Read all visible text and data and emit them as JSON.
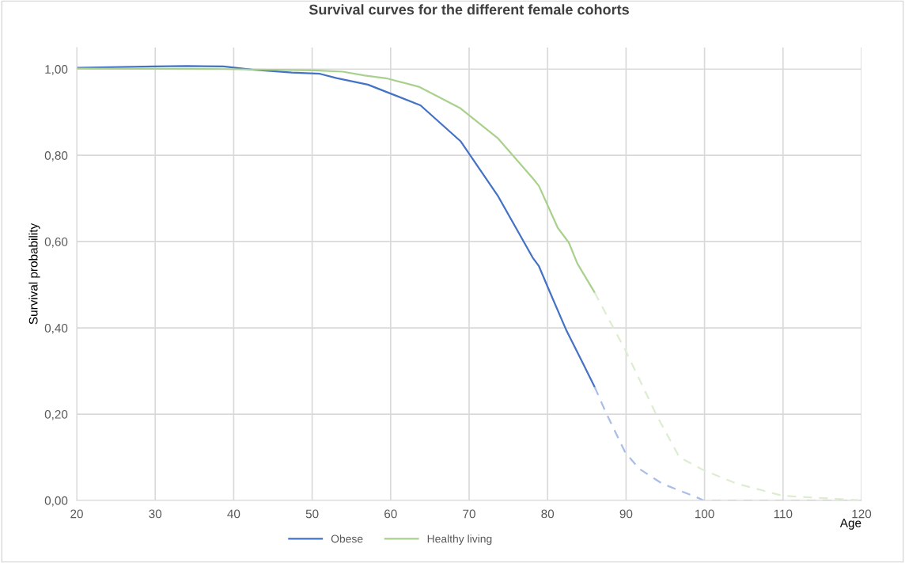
{
  "chart_data": {
    "type": "line",
    "title": "Survival curves for the different female cohorts",
    "xlabel": "Age",
    "ylabel": "Survival probability",
    "xlim": [
      20,
      120
    ],
    "xticks": [
      20,
      30,
      40,
      50,
      60,
      70,
      80,
      90,
      100,
      110,
      120
    ],
    "ylim": [
      0,
      1.05
    ],
    "yticks": [
      {
        "value": 0,
        "label": "0,00"
      },
      {
        "value": 0.2,
        "label": "0,20"
      },
      {
        "value": 0.4,
        "label": "0,40"
      },
      {
        "value": 0.6,
        "label": "0,60"
      },
      {
        "value": 0.8,
        "label": "0,80"
      },
      {
        "value": 1,
        "label": "1,00"
      }
    ],
    "grid": true,
    "legend": "bottom",
    "marker": "none",
    "series": [
      {
        "name": "Obese",
        "color": "#4472c4",
        "line_style": "solid",
        "x": [
          20,
          29.9,
          34.1,
          38.7,
          42.3,
          47.4,
          51.0,
          53.1,
          57.1,
          59.6,
          63.8,
          68.9,
          73.7,
          78.1,
          78.9,
          80.2,
          82.4,
          84.5,
          86.0
        ],
        "values": [
          1.003,
          1.006,
          1.007,
          1.006,
          0.999,
          0.992,
          0.989,
          0.979,
          0.964,
          0.946,
          0.916,
          0.833,
          0.705,
          0.563,
          0.543,
          0.487,
          0.394,
          0.318,
          0.263
        ]
      },
      {
        "name": "Healthy living",
        "color": "#a9d18e",
        "line_style": "solid",
        "x": [
          20,
          38.7,
          50.3,
          53.9,
          56.7,
          59.6,
          63.6,
          68.9,
          73.7,
          78.1,
          78.9,
          81.3,
          82.7,
          83.8,
          86.0
        ],
        "values": [
          1.001,
          1.0,
          0.997,
          0.994,
          0.985,
          0.978,
          0.959,
          0.909,
          0.839,
          0.747,
          0.729,
          0.632,
          0.598,
          0.549,
          0.482
        ]
      },
      {
        "color": "#a9bde6",
        "line_style": "dashed",
        "x": [
          86.0,
          87.4,
          89.9,
          91.7,
          94.6,
          98.9,
          99.9,
          110,
          120
        ],
        "values": [
          0.263,
          0.205,
          0.111,
          0.073,
          0.039,
          0.008,
          0.0,
          0.0,
          0.0
        ]
      },
      {
        "color": "#dcedd2",
        "line_style": "dashed",
        "x": [
          86.0,
          88.1,
          89.9,
          93.9,
          96.8,
          99.9,
          104.1,
          109.9,
          120
        ],
        "values": [
          0.482,
          0.41,
          0.349,
          0.197,
          0.1,
          0.07,
          0.039,
          0.011,
          0.0
        ]
      }
    ]
  }
}
